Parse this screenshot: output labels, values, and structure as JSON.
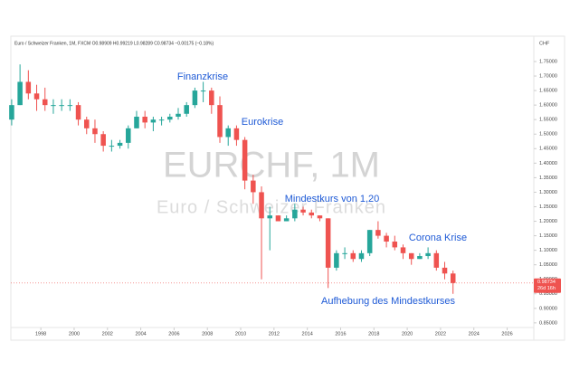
{
  "chart_data": {
    "type": "candlestick",
    "header": "Euro / Schweizer Franken, 1M, FXCM  O0.98909  H0.99219  L0.98289  C0.98734  −0.00175 (−0.18%)",
    "currency_label": "CHF",
    "watermark_title": "EURCHF, 1M",
    "watermark_subtitle": "Euro / Schweizer Franken",
    "annotations": [
      "Finanzkrise",
      "Eurokrise",
      "Mindestkurs von 1,20",
      "Corona Krise",
      "Aufhebung des Mindestkurses"
    ],
    "up_color": "#26a69a",
    "down_color": "#ef5350",
    "annotation_color": "#1e5ad6",
    "x": [
      1996.0,
      1996.5,
      1997.0,
      1997.5,
      1998.0,
      1998.5,
      1999.0,
      1999.5,
      2000.0,
      2000.5,
      2001.0,
      2001.5,
      2002.0,
      2002.5,
      2003.0,
      2003.5,
      2004.0,
      2004.5,
      2005.0,
      2005.5,
      2006.0,
      2006.5,
      2007.0,
      2007.5,
      2008.0,
      2008.5,
      2009.0,
      2009.5,
      2010.0,
      2010.5,
      2011.0,
      2011.5,
      2012.0,
      2012.5,
      2013.0,
      2013.5,
      2014.0,
      2014.5,
      2015.0,
      2015.5,
      2016.0,
      2016.5,
      2017.0,
      2017.5,
      2018.0,
      2018.5,
      2019.0,
      2019.5,
      2020.0,
      2020.5,
      2021.0,
      2021.5,
      2022.0,
      2022.5
    ],
    "open": [
      1.55,
      1.6,
      1.68,
      1.64,
      1.62,
      1.6,
      1.6,
      1.6,
      1.6,
      1.55,
      1.52,
      1.5,
      1.46,
      1.46,
      1.47,
      1.52,
      1.56,
      1.54,
      1.55,
      1.55,
      1.56,
      1.57,
      1.6,
      1.65,
      1.65,
      1.6,
      1.49,
      1.52,
      1.48,
      1.34,
      1.3,
      1.21,
      1.22,
      1.2,
      1.21,
      1.24,
      1.23,
      1.22,
      1.21,
      1.04,
      1.09,
      1.09,
      1.07,
      1.09,
      1.17,
      1.15,
      1.13,
      1.11,
      1.09,
      1.07,
      1.08,
      1.09,
      1.04,
      1.02
    ],
    "high": [
      1.62,
      1.74,
      1.72,
      1.67,
      1.66,
      1.62,
      1.62,
      1.62,
      1.61,
      1.56,
      1.55,
      1.51,
      1.48,
      1.48,
      1.53,
      1.58,
      1.58,
      1.56,
      1.56,
      1.57,
      1.59,
      1.61,
      1.66,
      1.68,
      1.66,
      1.63,
      1.53,
      1.53,
      1.49,
      1.36,
      1.32,
      1.25,
      1.22,
      1.22,
      1.26,
      1.25,
      1.24,
      1.22,
      1.21,
      1.1,
      1.11,
      1.1,
      1.1,
      1.17,
      1.2,
      1.16,
      1.15,
      1.12,
      1.09,
      1.09,
      1.11,
      1.1,
      1.06,
      1.03
    ],
    "low": [
      1.53,
      1.6,
      1.62,
      1.58,
      1.58,
      1.57,
      1.58,
      1.58,
      1.53,
      1.5,
      1.47,
      1.44,
      1.44,
      1.45,
      1.45,
      1.52,
      1.52,
      1.51,
      1.53,
      1.54,
      1.55,
      1.56,
      1.59,
      1.61,
      1.57,
      1.47,
      1.46,
      1.46,
      1.31,
      1.26,
      1.0,
      1.1,
      1.2,
      1.2,
      1.2,
      1.22,
      1.21,
      1.2,
      0.97,
      1.03,
      1.07,
      1.06,
      1.06,
      1.08,
      1.14,
      1.11,
      1.1,
      1.07,
      1.05,
      1.07,
      1.07,
      1.03,
      1.0,
      0.95
    ],
    "close": [
      1.6,
      1.68,
      1.64,
      1.62,
      1.6,
      1.6,
      1.6,
      1.6,
      1.55,
      1.52,
      1.5,
      1.46,
      1.46,
      1.47,
      1.52,
      1.56,
      1.54,
      1.55,
      1.55,
      1.56,
      1.57,
      1.6,
      1.65,
      1.65,
      1.6,
      1.49,
      1.52,
      1.48,
      1.34,
      1.3,
      1.21,
      1.22,
      1.2,
      1.21,
      1.24,
      1.23,
      1.22,
      1.21,
      1.04,
      1.09,
      1.09,
      1.07,
      1.09,
      1.17,
      1.15,
      1.13,
      1.11,
      1.09,
      1.07,
      1.08,
      1.09,
      1.04,
      1.02,
      0.98734
    ],
    "price_line": 0.98734,
    "price_countdown": "26d 16h",
    "xlim": [
      1996.2,
      2027.6
    ],
    "ylim": [
      0.834,
      1.831
    ],
    "xticks": [
      1998,
      2000,
      2002,
      2004,
      2006,
      2008,
      2010,
      2012,
      2014,
      2016,
      2018,
      2020,
      2022,
      2024,
      2026
    ],
    "yticks": [
      {
        "value": 0.85,
        "label": "0.85000"
      },
      {
        "value": 0.9,
        "label": "0.90000"
      },
      {
        "value": 0.95,
        "label": "0.95000"
      },
      {
        "value": 1.0,
        "label": "1.00000"
      },
      {
        "value": 1.05,
        "label": "1.05000"
      },
      {
        "value": 1.1,
        "label": "1.10000"
      },
      {
        "value": 1.15,
        "label": "1.15000"
      },
      {
        "value": 1.2,
        "label": "1.20000"
      },
      {
        "value": 1.25,
        "label": "1.25000"
      },
      {
        "value": 1.3,
        "label": "1.30000"
      },
      {
        "value": 1.35,
        "label": "1.35000"
      },
      {
        "value": 1.4,
        "label": "1.40000"
      },
      {
        "value": 1.45,
        "label": "1.45000"
      },
      {
        "value": 1.5,
        "label": "1.50000"
      },
      {
        "value": 1.55,
        "label": "1.55000"
      },
      {
        "value": 1.6,
        "label": "1.60000"
      },
      {
        "value": 1.65,
        "label": "1.65000"
      },
      {
        "value": 1.7,
        "label": "1.70000"
      },
      {
        "value": 1.75,
        "label": "1.75000"
      }
    ],
    "grid": false
  }
}
